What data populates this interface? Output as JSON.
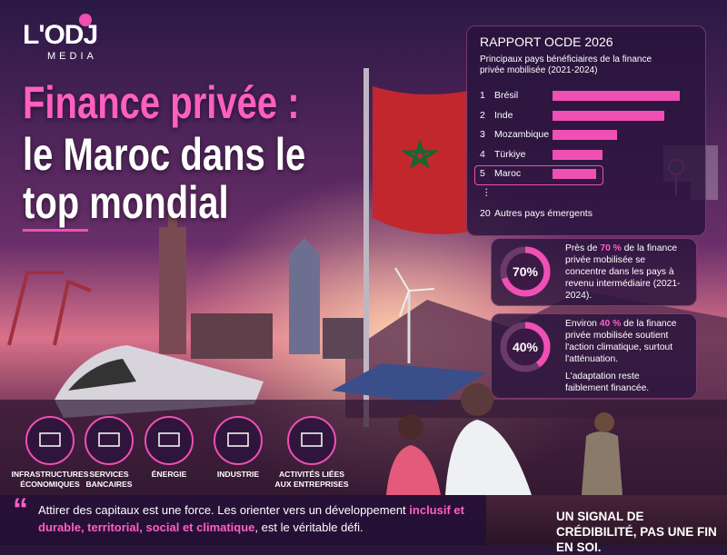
{
  "brand": {
    "logo": "L'ODJ",
    "sub": "MEDIA"
  },
  "headline": {
    "lines": [
      "Finance privée :",
      "le Maroc dans le",
      "top mondial"
    ]
  },
  "report": {
    "title": "RAPPORT OCDE 2026",
    "subtitle": "Principaux pays bénéficiaires de la finance privée mobilisée (2021-2024)",
    "rows": [
      {
        "rank": "1",
        "name": "Brésil",
        "value": 100
      },
      {
        "rank": "2",
        "name": "Inde",
        "value": 88
      },
      {
        "rank": "3",
        "name": "Mozambique",
        "value": 51
      },
      {
        "rank": "4",
        "name": "Türkiye",
        "value": 39
      },
      {
        "rank": "5",
        "name": "Maroc",
        "value": 34
      }
    ],
    "ellipsis": "⋮",
    "last": {
      "rank": "20",
      "name": "Autres pays émergents"
    }
  },
  "stats": [
    {
      "percent": 70,
      "label": "70%",
      "text": [
        "Près de ",
        "70 %",
        " de la finance privée mobilisée se concentre dans les pays à revenu intermédiaire (2021-2024)."
      ]
    },
    {
      "percent": 40,
      "label": "40%",
      "text": [
        "Environ ",
        "40 %",
        " de la finance privée mobilisée soutient l'action climatique, surtout l'atténuation."
      ],
      "note": "L'adaptation reste faiblement financée."
    }
  ],
  "sectors": [
    "INFRASTRUCTURES ÉCONOMIQUES",
    "SERVICES BANCAIRES",
    "ÉNERGIE",
    "INDUSTRIE",
    "ACTIVITÉS LIÉES AUX ENTREPRISES"
  ],
  "quote": {
    "parts": [
      "Attirer des capitaux est une force. Les orienter vers un développement ",
      "inclusif et durable, territorial, social et climatique",
      ", est le véritable défi."
    ]
  },
  "signal": "UN SIGNAL DE CRÉDIBILITÉ, PAS UNE FIN EN SOI."
}
